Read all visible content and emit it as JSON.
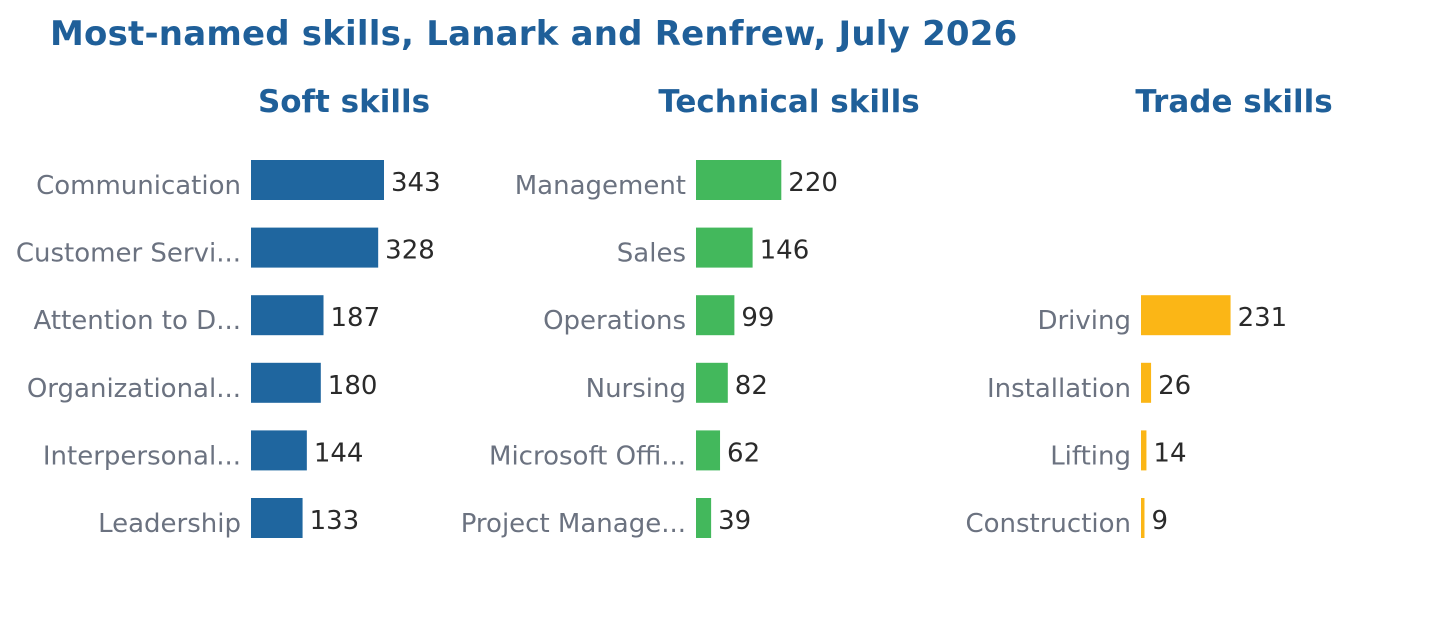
{
  "title": "Most-named skills, Lanark and Renfrew, July 2026",
  "colors": {
    "title": "#1f5f99",
    "soft": "#1f669f",
    "technical": "#43b85c",
    "trade": "#fbb616"
  },
  "chart_data": [
    {
      "type": "bar",
      "orientation": "horizontal",
      "title": "Soft skills",
      "color": "#1f669f",
      "categories": [
        "Communication",
        "Customer Servi...",
        "Attention to D...",
        "Organizational...",
        "Interpersonal...",
        "Leadership"
      ],
      "values": [
        343,
        328,
        187,
        180,
        144,
        133
      ],
      "labels": [
        "343",
        "328",
        "187",
        "180",
        "144",
        "133"
      ]
    },
    {
      "type": "bar",
      "orientation": "horizontal",
      "title": "Technical skills",
      "color": "#43b85c",
      "categories": [
        "Management",
        "Sales",
        "Operations",
        "Nursing",
        "Microsoft Offi...",
        "Project Manage..."
      ],
      "values": [
        220,
        146,
        99,
        82,
        62,
        39
      ],
      "labels": [
        "220",
        "146",
        "99",
        "82",
        "62",
        "39"
      ]
    },
    {
      "type": "bar",
      "orientation": "horizontal",
      "title": "Trade skills",
      "color": "#fbb616",
      "categories": [
        "Driving",
        "Installation",
        "Lifting",
        "Construction"
      ],
      "values": [
        231,
        26,
        14,
        9
      ],
      "labels": [
        "231",
        "26",
        "14",
        "9"
      ],
      "first_row": 2
    }
  ]
}
